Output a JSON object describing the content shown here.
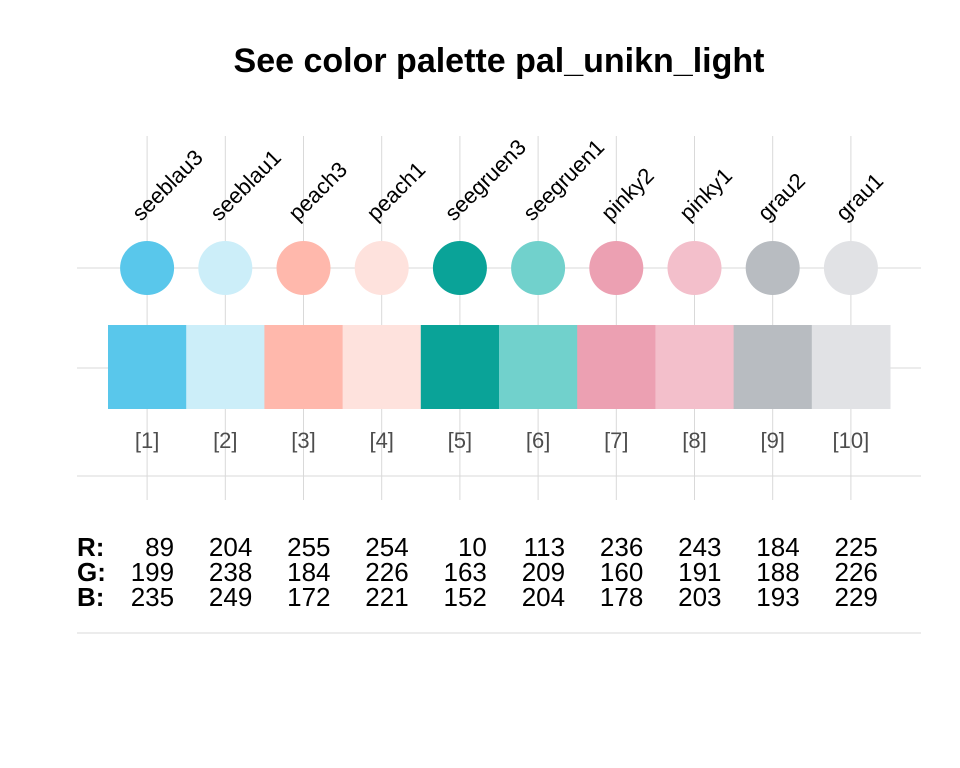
{
  "chart_data": {
    "type": "table",
    "title": "See color palette pal_unikn_light",
    "rgb_labels": [
      "R:",
      "G:",
      "B:"
    ],
    "colors": [
      {
        "name": "seeblau3",
        "index": "[1]",
        "hex": "#59C7EB",
        "r": 89,
        "g": 199,
        "b": 235
      },
      {
        "name": "seeblau1",
        "index": "[2]",
        "hex": "#CCEEF9",
        "r": 204,
        "g": 238,
        "b": 249
      },
      {
        "name": "peach3",
        "index": "[3]",
        "hex": "#FFB8AC",
        "r": 255,
        "g": 184,
        "b": 172
      },
      {
        "name": "peach1",
        "index": "[4]",
        "hex": "#FEE2DD",
        "r": 254,
        "g": 226,
        "b": 221
      },
      {
        "name": "seegruen3",
        "index": "[5]",
        "hex": "#0AA398",
        "r": 10,
        "g": 163,
        "b": 152
      },
      {
        "name": "seegruen1",
        "index": "[6]",
        "hex": "#71D1CC",
        "r": 113,
        "g": 209,
        "b": 204
      },
      {
        "name": "pinky2",
        "index": "[7]",
        "hex": "#ECA0B2",
        "r": 236,
        "g": 160,
        "b": 178
      },
      {
        "name": "pinky1",
        "index": "[8]",
        "hex": "#F3BFCB",
        "r": 243,
        "g": 191,
        "b": 203
      },
      {
        "name": "grau2",
        "index": "[9]",
        "hex": "#B8BCC1",
        "r": 184,
        "g": 188,
        "b": 193
      },
      {
        "name": "grau1",
        "index": "[10]",
        "hex": "#E1E2E5",
        "r": 225,
        "g": 226,
        "b": 229
      }
    ]
  }
}
